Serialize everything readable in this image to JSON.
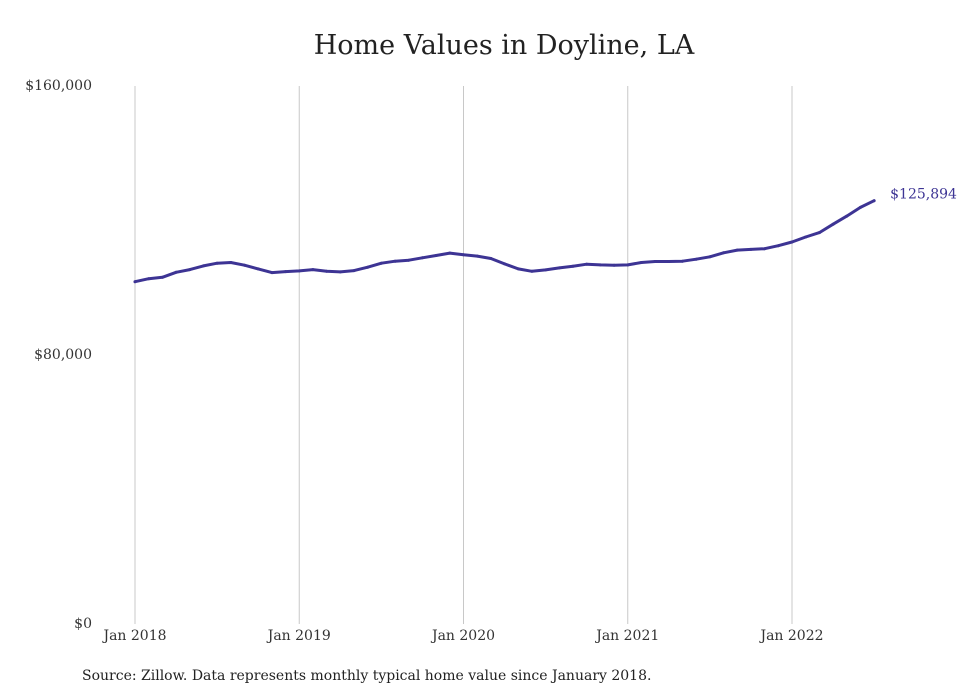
{
  "chart_data": {
    "type": "line",
    "title": "Home Values in Doyline, LA",
    "xlabel": "",
    "ylabel": "",
    "y_ticks": [
      0,
      80000,
      160000
    ],
    "y_tick_labels": [
      "$0",
      "$80,000",
      "$160,000"
    ],
    "ylim": [
      0,
      160000
    ],
    "x_ticks": [
      "2018-01",
      "2019-01",
      "2020-01",
      "2021-01",
      "2022-01"
    ],
    "x_tick_labels": [
      "Jan 2018",
      "Jan 2019",
      "Jan 2020",
      "Jan 2021",
      "Jan 2022"
    ],
    "grid": "vertical",
    "series": [
      {
        "color": "#3d3494",
        "end_label": "$125,894",
        "x": [
          "2018-01",
          "2018-02",
          "2018-03",
          "2018-04",
          "2018-05",
          "2018-06",
          "2018-07",
          "2018-08",
          "2018-09",
          "2018-10",
          "2018-11",
          "2018-12",
          "2019-01",
          "2019-02",
          "2019-03",
          "2019-04",
          "2019-05",
          "2019-06",
          "2019-07",
          "2019-08",
          "2019-09",
          "2019-10",
          "2019-11",
          "2019-12",
          "2020-01",
          "2020-02",
          "2020-03",
          "2020-04",
          "2020-05",
          "2020-06",
          "2020-07",
          "2020-08",
          "2020-09",
          "2020-10",
          "2020-11",
          "2020-12",
          "2021-01",
          "2021-02",
          "2021-03",
          "2021-04",
          "2021-05",
          "2021-06",
          "2021-07",
          "2021-08",
          "2021-09",
          "2021-10",
          "2021-11",
          "2021-12",
          "2022-01",
          "2022-02",
          "2022-03",
          "2022-04",
          "2022-05",
          "2022-06",
          "2022-07"
        ],
        "values": [
          101800,
          102700,
          103100,
          104600,
          105400,
          106500,
          107300,
          107500,
          106700,
          105600,
          104500,
          104800,
          105000,
          105400,
          104900,
          104700,
          105100,
          106100,
          107300,
          107900,
          108200,
          108900,
          109600,
          110300,
          109800,
          109400,
          108700,
          107100,
          105600,
          104900,
          105300,
          105900,
          106400,
          107000,
          106800,
          106700,
          106800,
          107500,
          107800,
          107800,
          107900,
          108500,
          109200,
          110400,
          111200,
          111400,
          111600,
          112500,
          113600,
          115100,
          116400,
          118900,
          121300,
          123900,
          125894
        ]
      }
    ]
  },
  "source_note": "Source: Zillow. Data represents monthly typical home value since January 2018."
}
